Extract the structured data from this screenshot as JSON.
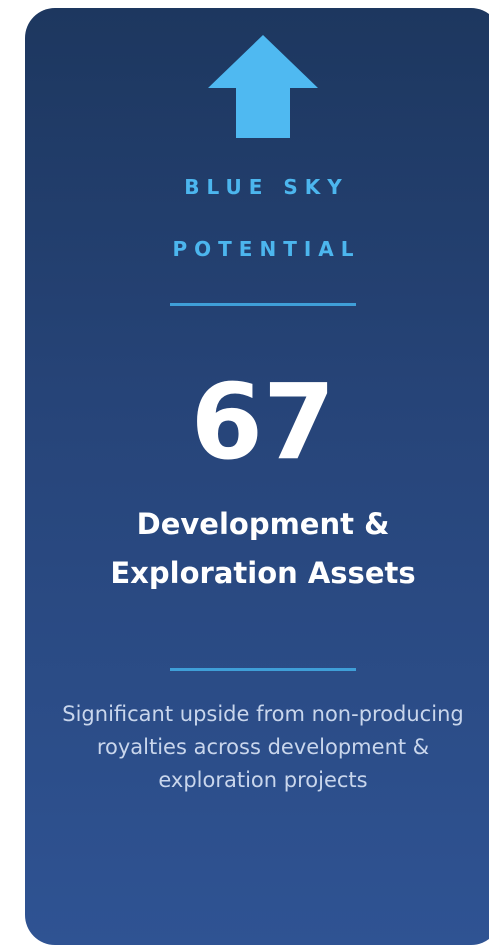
{
  "card": {
    "kicker_lines": [
      "BLUE SKY",
      "POTENTIAL"
    ],
    "number": "67",
    "heading": "Development & Exploration Assets",
    "description": "Significant upside from non-producing royalties across development & exploration projects"
  }
}
